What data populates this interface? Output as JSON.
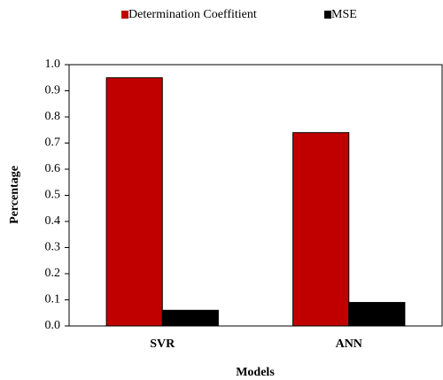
{
  "chart_data": {
    "type": "bar",
    "categories": [
      "SVR",
      "ANN"
    ],
    "series": [
      {
        "name": "Determination Coeffitient",
        "color": "#c00000",
        "values": [
          0.95,
          0.74
        ]
      },
      {
        "name": "MSE",
        "color": "#000000",
        "values": [
          0.06,
          0.09
        ]
      }
    ],
    "ylim": [
      0,
      1
    ],
    "yticks": [
      {
        "value": 0,
        "label": "0.0"
      },
      0.1,
      0.2,
      0.3,
      0.4,
      0.5,
      0.6,
      0.7,
      0.8,
      0.9,
      {
        "value": 1,
        "label": "1.0"
      }
    ],
    "y_label": "Percentage",
    "x_label": "Models",
    "grid": false,
    "legend": "top"
  }
}
